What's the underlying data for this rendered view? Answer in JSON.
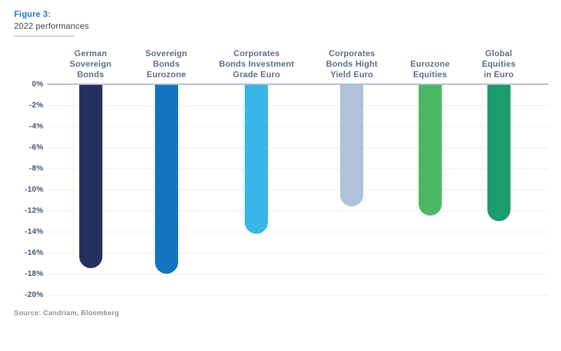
{
  "header": {
    "figure_label": "Figure 3:",
    "subtitle": "2022 performances"
  },
  "source_note": "Source: Candriam, Bloomberg",
  "colors": {
    "figure_label": "#1878c8",
    "subtitle": "#3d3d3d",
    "category_label": "#5d6c87",
    "tick_label": "#42536f",
    "zero_line": "#b3bdcb",
    "gridline": "#efefef",
    "source": "#8b949c"
  },
  "chart_data": {
    "type": "bar",
    "title": "2022 performances",
    "xlabel": "",
    "ylabel": "",
    "unit": "%",
    "ylim": [
      -20,
      0
    ],
    "ytick_step": 2,
    "ytick_labels": [
      "0%",
      "-2%",
      "-4%",
      "-6%",
      "-8%",
      "-10%",
      "-12%",
      "-14%",
      "-16%",
      "-18%",
      "-20%"
    ],
    "grid": true,
    "legend": "none",
    "categories": [
      "German Sovereign Bonds",
      "Sovereign Bonds Eurozone",
      "Corporates Bonds Investment Grade Euro",
      "Corporates Bonds Hight Yield Euro",
      "Eurozone Equities",
      "Global Equities in Euro"
    ],
    "category_lines": [
      [
        "German",
        "Sovereign",
        "Bonds"
      ],
      [
        "Sovereign",
        "Bonds",
        "Eurozone"
      ],
      [
        "Corporates",
        "Bonds Investment",
        "Grade Euro"
      ],
      [
        "Corporates",
        "Bonds Hight",
        "Yield Euro"
      ],
      [
        "Eurozone",
        "Equities"
      ],
      [
        "Global",
        "Equities",
        "in Euro"
      ]
    ],
    "values": [
      -17.4,
      -17.9,
      -14.1,
      -11.5,
      -12.4,
      -12.9
    ],
    "bar_colors": [
      "#25305f",
      "#1176bf",
      "#38b6e8",
      "#afc2d7",
      "#4cb865",
      "#1b9d6e"
    ],
    "bar_centers_pct": [
      8.7,
      23.8,
      41.8,
      60.8,
      76.4,
      90.1
    ]
  }
}
